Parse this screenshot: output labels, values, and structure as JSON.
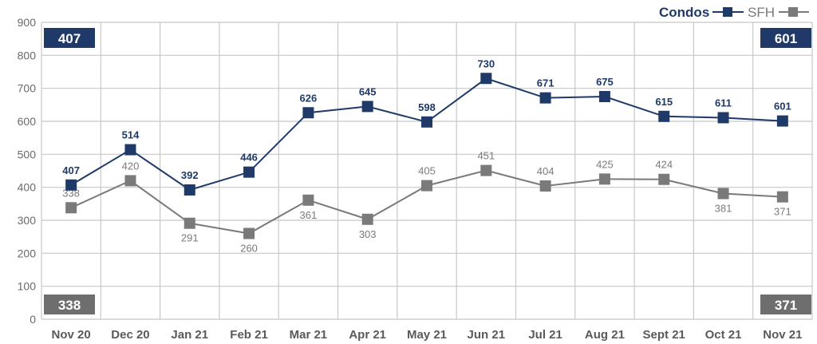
{
  "chart_data": {
    "type": "line",
    "categories": [
      "Nov 20",
      "Dec 20",
      "Jan 21",
      "Feb 21",
      "Mar 21",
      "Apr 21",
      "May 21",
      "Jun 21",
      "Jul 21",
      "Aug 21",
      "Sept 21",
      "Oct 21",
      "Nov 21"
    ],
    "ylim": [
      0,
      900
    ],
    "yticks": [
      0,
      100,
      200,
      300,
      400,
      500,
      600,
      700,
      800,
      900
    ],
    "grid": true,
    "legend_position": "top-right",
    "series": [
      {
        "name": "Condos",
        "color": "#1f3a68",
        "values": [
          407,
          514,
          392,
          446,
          626,
          645,
          598,
          730,
          671,
          675,
          615,
          611,
          601
        ],
        "label_pos": [
          "above",
          "above",
          "above",
          "above",
          "above",
          "above",
          "above",
          "above",
          "above",
          "above",
          "above",
          "above",
          "above"
        ]
      },
      {
        "name": "SFH",
        "color": "#7a7a7a",
        "values": [
          338,
          420,
          291,
          260,
          361,
          303,
          405,
          451,
          404,
          425,
          424,
          381,
          371
        ],
        "label_pos": [
          "above",
          "above",
          "below",
          "below",
          "below",
          "below",
          "above",
          "above",
          "above",
          "above",
          "above",
          "below",
          "below"
        ]
      }
    ],
    "callouts": {
      "condos_start": "407",
      "condos_end": "601",
      "sfh_start": "338",
      "sfh_end": "371"
    }
  }
}
